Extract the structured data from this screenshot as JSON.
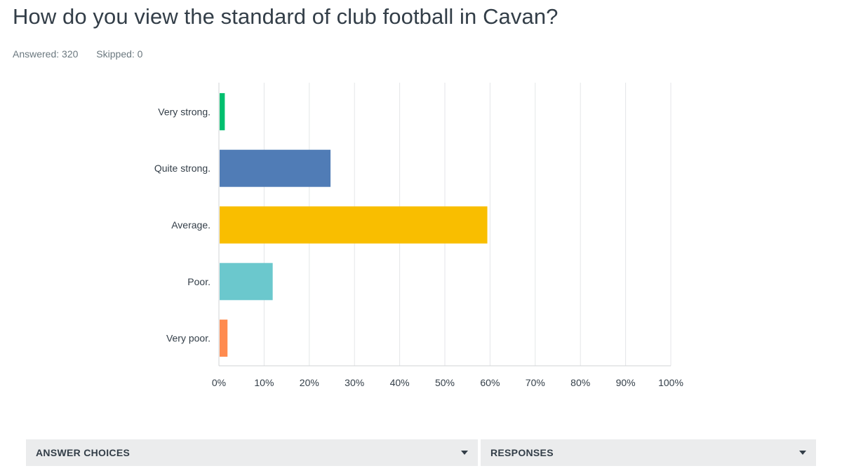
{
  "question": {
    "title": "How do you view the standard of club football in Cavan?",
    "answered": "Answered: 320",
    "skipped": "Skipped: 0"
  },
  "chart_data": {
    "type": "bar",
    "orientation": "horizontal",
    "categories": [
      "Very strong.",
      "Quite strong.",
      "Average.",
      "Poor.",
      "Very poor."
    ],
    "values": [
      1.3,
      24.7,
      59.4,
      11.9,
      1.9
    ],
    "colors": [
      "#00bf6f",
      "#507cb6",
      "#f9be00",
      "#6bc8cd",
      "#ff8b4f"
    ],
    "xlim": [
      0,
      100
    ],
    "xticks": [
      "0%",
      "10%",
      "20%",
      "30%",
      "40%",
      "50%",
      "60%",
      "70%",
      "80%",
      "90%",
      "100%"
    ],
    "grid": true,
    "title": "",
    "xlabel": "",
    "ylabel": ""
  },
  "table": {
    "headers": [
      {
        "label": "ANSWER CHOICES",
        "icon": "caret-down-icon"
      },
      {
        "label": "RESPONSES",
        "icon": "caret-down-icon"
      }
    ]
  }
}
